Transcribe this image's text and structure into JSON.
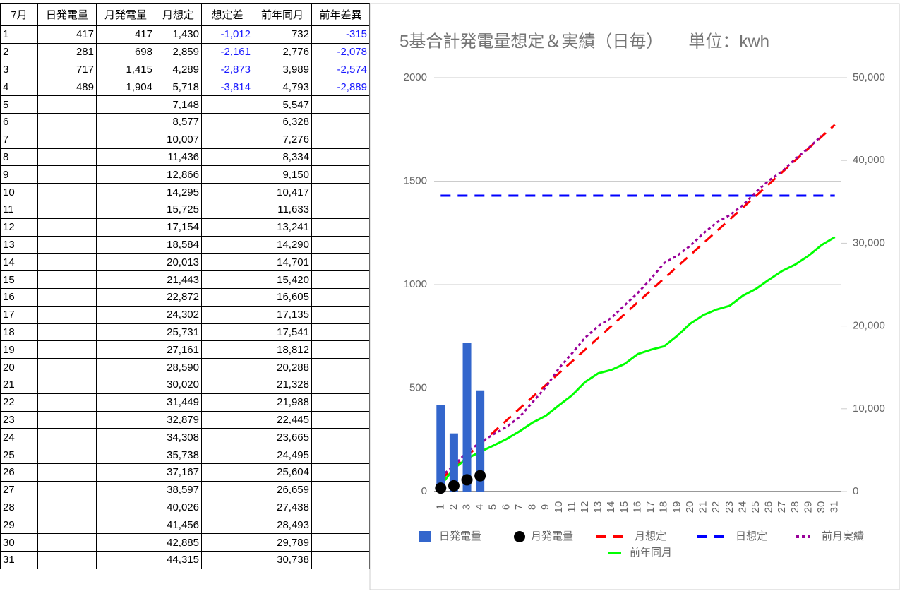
{
  "table": {
    "headers": [
      "7月",
      "日発電量",
      "月発電量",
      "月想定",
      "想定差",
      "前年同月",
      "前年差異"
    ],
    "rows": [
      [
        "1",
        "417",
        "417",
        "1,430",
        "-1,012",
        "732",
        "-315"
      ],
      [
        "2",
        "281",
        "698",
        "2,859",
        "-2,161",
        "2,776",
        "-2,078"
      ],
      [
        "3",
        "717",
        "1,415",
        "4,289",
        "-2,873",
        "3,989",
        "-2,574"
      ],
      [
        "4",
        "489",
        "1,904",
        "5,718",
        "-3,814",
        "4,793",
        "-2,889"
      ],
      [
        "5",
        null,
        null,
        "7,148",
        null,
        "5,547",
        null
      ],
      [
        "6",
        null,
        null,
        "8,577",
        null,
        "6,328",
        null
      ],
      [
        "7",
        null,
        null,
        "10,007",
        null,
        "7,276",
        null
      ],
      [
        "8",
        null,
        null,
        "11,436",
        null,
        "8,334",
        null
      ],
      [
        "9",
        null,
        null,
        "12,866",
        null,
        "9,150",
        null
      ],
      [
        "10",
        null,
        null,
        "14,295",
        null,
        "10,417",
        null
      ],
      [
        "11",
        null,
        null,
        "15,725",
        null,
        "11,633",
        null
      ],
      [
        "12",
        null,
        null,
        "17,154",
        null,
        "13,241",
        null
      ],
      [
        "13",
        null,
        null,
        "18,584",
        null,
        "14,290",
        null
      ],
      [
        "14",
        null,
        null,
        "20,013",
        null,
        "14,701",
        null
      ],
      [
        "15",
        null,
        null,
        "21,443",
        null,
        "15,420",
        null
      ],
      [
        "16",
        null,
        null,
        "22,872",
        null,
        "16,605",
        null
      ],
      [
        "17",
        null,
        null,
        "24,302",
        null,
        "17,135",
        null
      ],
      [
        "18",
        null,
        null,
        "25,731",
        null,
        "17,541",
        null
      ],
      [
        "19",
        null,
        null,
        "27,161",
        null,
        "18,812",
        null
      ],
      [
        "20",
        null,
        null,
        "28,590",
        null,
        "20,288",
        null
      ],
      [
        "21",
        null,
        null,
        "30,020",
        null,
        "21,328",
        null
      ],
      [
        "22",
        null,
        null,
        "31,449",
        null,
        "21,988",
        null
      ],
      [
        "23",
        null,
        null,
        "32,879",
        null,
        "22,445",
        null
      ],
      [
        "24",
        null,
        null,
        "34,308",
        null,
        "23,665",
        null
      ],
      [
        "25",
        null,
        null,
        "35,738",
        null,
        "24,495",
        null
      ],
      [
        "26",
        null,
        null,
        "37,167",
        null,
        "25,604",
        null
      ],
      [
        "27",
        null,
        null,
        "38,597",
        null,
        "26,659",
        null
      ],
      [
        "28",
        null,
        null,
        "40,026",
        null,
        "27,438",
        null
      ],
      [
        "29",
        null,
        null,
        "41,456",
        null,
        "28,493",
        null
      ],
      [
        "30",
        null,
        null,
        "42,885",
        null,
        "29,789",
        null
      ],
      [
        "31",
        null,
        null,
        "44,315",
        null,
        "30,738",
        null
      ]
    ]
  },
  "chart_data": {
    "type": "combo",
    "title": "5基合計発電量想定＆実績（日毎）　　単位：kwh",
    "categories": [
      1,
      2,
      3,
      4,
      5,
      6,
      7,
      8,
      9,
      10,
      11,
      12,
      13,
      14,
      15,
      16,
      17,
      18,
      19,
      20,
      21,
      22,
      23,
      24,
      25,
      26,
      27,
      28,
      29,
      30,
      31
    ],
    "ylim": [
      0,
      2000
    ],
    "yticks": [
      0,
      500,
      1000,
      1500,
      2000
    ],
    "y2lim": [
      0,
      50000
    ],
    "y2ticks": [
      0,
      {
        "value": 10000,
        "label": "10,000"
      },
      {
        "value": 20000,
        "label": "20,000"
      },
      {
        "value": 30000,
        "label": "30,000"
      },
      {
        "value": 40000,
        "label": "40,000"
      },
      {
        "value": 50000,
        "label": "50,000"
      }
    ],
    "grid": true,
    "series": [
      {
        "name": "日発電量",
        "type": "bar",
        "color": "#3366cc",
        "axis": "y",
        "values": [
          417,
          281,
          717,
          489,
          null,
          null,
          null,
          null,
          null,
          null,
          null,
          null,
          null,
          null,
          null,
          null,
          null,
          null,
          null,
          null,
          null,
          null,
          null,
          null,
          null,
          null,
          null,
          null,
          null,
          null,
          null
        ]
      },
      {
        "name": "月発電量",
        "type": "scatter",
        "color": "#000000",
        "axis": "y2",
        "values": [
          417,
          698,
          1415,
          1904,
          null,
          null,
          null,
          null,
          null,
          null,
          null,
          null,
          null,
          null,
          null,
          null,
          null,
          null,
          null,
          null,
          null,
          null,
          null,
          null,
          null,
          null,
          null,
          null,
          null,
          null,
          null
        ]
      },
      {
        "name": "月想定",
        "type": "line",
        "style": "dashed",
        "color": "#ff0000",
        "axis": "y2",
        "values": [
          1430,
          2859,
          4289,
          5718,
          7148,
          8577,
          10007,
          11436,
          12866,
          14295,
          15725,
          17154,
          18584,
          20013,
          21443,
          22872,
          24302,
          25731,
          27161,
          28590,
          30020,
          31449,
          32879,
          34308,
          35738,
          37167,
          38597,
          40026,
          41456,
          42885,
          44315
        ]
      },
      {
        "name": "日想定",
        "type": "line",
        "style": "dashed",
        "color": "#0000ff",
        "axis": "y",
        "values": [
          1430,
          1430,
          1430,
          1430,
          1430,
          1430,
          1430,
          1430,
          1430,
          1430,
          1430,
          1430,
          1430,
          1430,
          1430,
          1430,
          1430,
          1430,
          1430,
          1430,
          1430,
          1430,
          1430,
          1430,
          1430,
          1430,
          1430,
          1430,
          1430,
          1430,
          1430
        ]
      },
      {
        "name": "前月実績",
        "type": "line",
        "style": "dotted",
        "color": "#990099",
        "axis": "y2",
        "values": [
          1800,
          3100,
          4800,
          5900,
          6900,
          7800,
          9000,
          10800,
          12600,
          14900,
          16700,
          18600,
          20000,
          21000,
          22500,
          24000,
          25700,
          27600,
          28500,
          29700,
          31200,
          32500,
          33400,
          34600,
          36200,
          37600,
          38700,
          40200,
          41500,
          43000,
          null
        ]
      },
      {
        "name": "前年同月",
        "type": "line",
        "style": "solid",
        "color": "#00ff00",
        "axis": "y2",
        "values": [
          732,
          2776,
          3989,
          4793,
          5547,
          6328,
          7276,
          8334,
          9150,
          10417,
          11633,
          13241,
          14290,
          14701,
          15420,
          16605,
          17135,
          17541,
          18812,
          20288,
          21328,
          21988,
          22445,
          23665,
          24495,
          25604,
          26659,
          27438,
          28493,
          29789,
          30738
        ]
      }
    ]
  }
}
